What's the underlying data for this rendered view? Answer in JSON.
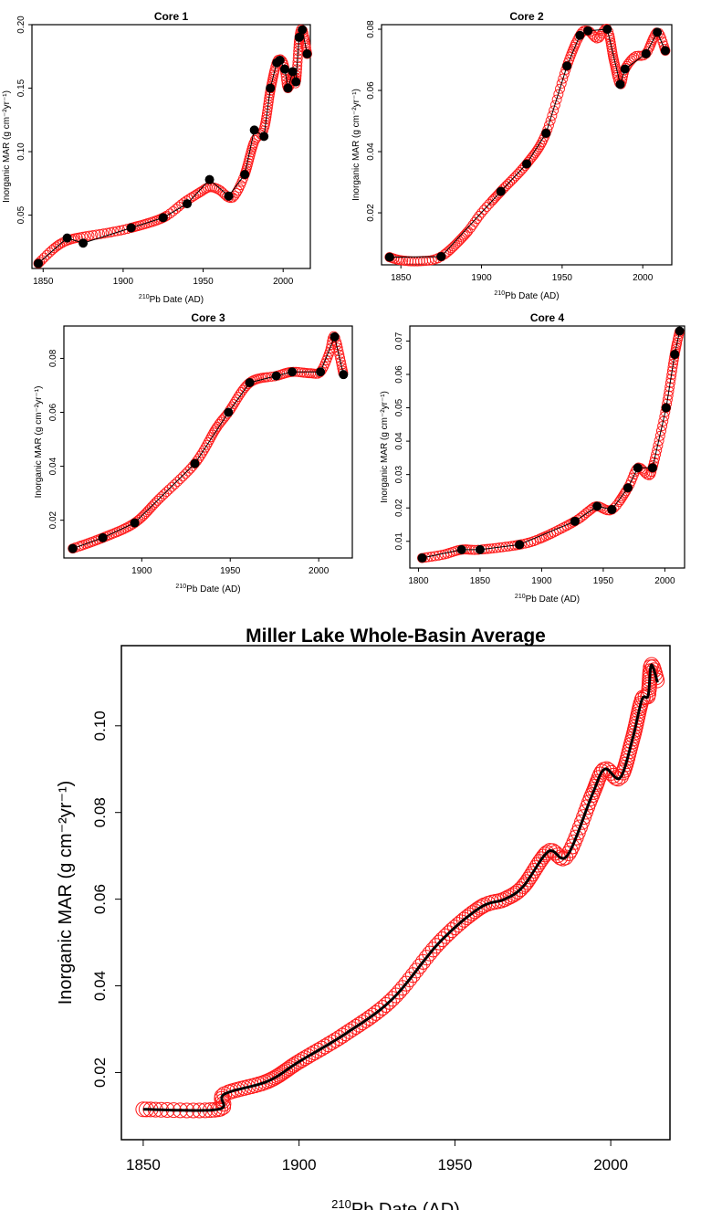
{
  "chart_data": [
    {
      "id": "core1",
      "type": "scatter",
      "title": "Core 1",
      "xlabel_sup": "210",
      "xlabel_main": "Pb Date (AD)",
      "ylabel": "Inorganic MAR (g cm⁻²yr⁻¹)",
      "xlim": [
        1843,
        2017
      ],
      "ylim": [
        0.008,
        0.2
      ],
      "xticks": [
        1850,
        1900,
        1950,
        2000
      ],
      "yticks": [
        0.05,
        0.1,
        0.15,
        0.2
      ],
      "ytick_labels": [
        "0.05",
        "0.10",
        "0.15",
        "0.20"
      ],
      "measured": [
        [
          1847,
          0.012
        ],
        [
          1865,
          0.032
        ],
        [
          1875,
          0.028
        ],
        [
          1905,
          0.04
        ],
        [
          1925,
          0.048
        ],
        [
          1940,
          0.059
        ],
        [
          1954,
          0.078
        ],
        [
          1966,
          0.065
        ],
        [
          1976,
          0.082
        ],
        [
          1982,
          0.117
        ],
        [
          1988,
          0.112
        ],
        [
          1992,
          0.15
        ],
        [
          1996,
          0.17
        ],
        [
          1998,
          0.172
        ],
        [
          2001,
          0.165
        ],
        [
          2003,
          0.15
        ],
        [
          2006,
          0.163
        ],
        [
          2008,
          0.155
        ],
        [
          2010,
          0.19
        ],
        [
          2012,
          0.196
        ],
        [
          2015,
          0.177
        ]
      ],
      "smooth": [
        [
          1847,
          0.012
        ],
        [
          1857,
          0.024
        ],
        [
          1865,
          0.03
        ],
        [
          1875,
          0.033
        ],
        [
          1890,
          0.036
        ],
        [
          1905,
          0.04
        ],
        [
          1925,
          0.048
        ],
        [
          1938,
          0.06
        ],
        [
          1948,
          0.068
        ],
        [
          1954,
          0.072
        ],
        [
          1960,
          0.07
        ],
        [
          1966,
          0.064
        ],
        [
          1970,
          0.066
        ],
        [
          1976,
          0.082
        ],
        [
          1982,
          0.108
        ],
        [
          1988,
          0.118
        ],
        [
          1992,
          0.148
        ],
        [
          1996,
          0.17
        ],
        [
          1999,
          0.172
        ],
        [
          2001,
          0.165
        ],
        [
          2003,
          0.15
        ],
        [
          2006,
          0.16
        ],
        [
          2008,
          0.155
        ],
        [
          2010,
          0.188
        ],
        [
          2012,
          0.196
        ],
        [
          2015,
          0.177
        ]
      ]
    },
    {
      "id": "core2",
      "type": "scatter",
      "title": "Core 2",
      "xlabel_sup": "210",
      "xlabel_main": "Pb Date (AD)",
      "ylabel": "Inorganic MAR (g cm⁻²yr⁻¹)",
      "xlim": [
        1838,
        2018
      ],
      "ylim": [
        0.003,
        0.0815
      ],
      "xticks": [
        1850,
        1900,
        1950,
        2000
      ],
      "yticks": [
        0.02,
        0.04,
        0.06,
        0.08
      ],
      "ytick_labels": [
        "0.02",
        "0.04",
        "0.06",
        "0.08"
      ],
      "measured": [
        [
          1843,
          0.0055
        ],
        [
          1875,
          0.0057
        ],
        [
          1912,
          0.027
        ],
        [
          1928,
          0.036
        ],
        [
          1940,
          0.046
        ],
        [
          1953,
          0.068
        ],
        [
          1961,
          0.078
        ],
        [
          1966,
          0.0795
        ],
        [
          1978,
          0.08
        ],
        [
          1986,
          0.062
        ],
        [
          1989,
          0.067
        ],
        [
          2002,
          0.072
        ],
        [
          2009,
          0.079
        ],
        [
          2014,
          0.073
        ]
      ],
      "smooth": [
        [
          1843,
          0.0055
        ],
        [
          1850,
          0.0045
        ],
        [
          1862,
          0.0042
        ],
        [
          1875,
          0.0057
        ],
        [
          1890,
          0.013
        ],
        [
          1900,
          0.02
        ],
        [
          1912,
          0.027
        ],
        [
          1928,
          0.036
        ],
        [
          1940,
          0.046
        ],
        [
          1953,
          0.068
        ],
        [
          1961,
          0.078
        ],
        [
          1966,
          0.0795
        ],
        [
          1972,
          0.077
        ],
        [
          1978,
          0.08
        ],
        [
          1982,
          0.07
        ],
        [
          1986,
          0.062
        ],
        [
          1989,
          0.067
        ],
        [
          1995,
          0.071
        ],
        [
          2002,
          0.072
        ],
        [
          2009,
          0.079
        ],
        [
          2014,
          0.073
        ]
      ]
    },
    {
      "id": "core3",
      "type": "scatter",
      "title": "Core 3",
      "xlabel_sup": "210",
      "xlabel_main": "Pb Date (AD)",
      "ylabel": "Inorganic MAR (g cm⁻²yr⁻¹)",
      "xlim": [
        1856,
        2019
      ],
      "ylim": [
        0.006,
        0.092
      ],
      "xticks": [
        1900,
        1950,
        2000
      ],
      "yticks": [
        0.02,
        0.04,
        0.06,
        0.08
      ],
      "ytick_labels": [
        "0.02",
        "0.04",
        "0.06",
        "0.08"
      ],
      "measured": [
        [
          1861,
          0.0095
        ],
        [
          1878,
          0.0135
        ],
        [
          1896,
          0.019
        ],
        [
          1930,
          0.041
        ],
        [
          1949,
          0.06
        ],
        [
          1961,
          0.071
        ],
        [
          1976,
          0.0735
        ],
        [
          1985,
          0.075
        ],
        [
          2001,
          0.075
        ],
        [
          2009,
          0.088
        ],
        [
          2014,
          0.074
        ]
      ],
      "smooth": [
        [
          1861,
          0.0095
        ],
        [
          1878,
          0.0135
        ],
        [
          1896,
          0.019
        ],
        [
          1910,
          0.028
        ],
        [
          1930,
          0.041
        ],
        [
          1942,
          0.054
        ],
        [
          1949,
          0.06
        ],
        [
          1961,
          0.071
        ],
        [
          1976,
          0.0735
        ],
        [
          1985,
          0.075
        ],
        [
          1995,
          0.0745
        ],
        [
          2001,
          0.075
        ],
        [
          2006,
          0.082
        ],
        [
          2009,
          0.088
        ],
        [
          2014,
          0.074
        ]
      ]
    },
    {
      "id": "core4",
      "type": "scatter",
      "title": "Core 4",
      "xlabel_sup": "210",
      "xlabel_main": "Pb Date (AD)",
      "ylabel": "Inorganic MAR (g cm⁻²yr⁻¹)",
      "xlim": [
        1793,
        2016
      ],
      "ylim": [
        0.002,
        0.0745
      ],
      "xticks": [
        1800,
        1850,
        1900,
        1950,
        2000
      ],
      "yticks": [
        0.01,
        0.02,
        0.03,
        0.04,
        0.05,
        0.06,
        0.07
      ],
      "ytick_labels": [
        "0.01",
        "0.02",
        "0.03",
        "0.04",
        "0.05",
        "0.06",
        "0.07"
      ],
      "measured": [
        [
          1803,
          0.005
        ],
        [
          1835,
          0.0075
        ],
        [
          1850,
          0.0075
        ],
        [
          1882,
          0.009
        ],
        [
          1927,
          0.016
        ],
        [
          1945,
          0.0205
        ],
        [
          1957,
          0.0195
        ],
        [
          1970,
          0.026
        ],
        [
          1978,
          0.032
        ],
        [
          1990,
          0.032
        ],
        [
          2001,
          0.05
        ],
        [
          2008,
          0.066
        ],
        [
          2012,
          0.073
        ]
      ],
      "smooth": [
        [
          1803,
          0.005
        ],
        [
          1820,
          0.006
        ],
        [
          1835,
          0.0075
        ],
        [
          1850,
          0.0075
        ],
        [
          1882,
          0.009
        ],
        [
          1900,
          0.011
        ],
        [
          1927,
          0.016
        ],
        [
          1938,
          0.019
        ],
        [
          1945,
          0.0205
        ],
        [
          1957,
          0.0195
        ],
        [
          1970,
          0.026
        ],
        [
          1978,
          0.032
        ],
        [
          1986,
          0.03
        ],
        [
          1990,
          0.032
        ],
        [
          2001,
          0.05
        ],
        [
          2008,
          0.066
        ],
        [
          2012,
          0.073
        ]
      ]
    },
    {
      "id": "average",
      "type": "line",
      "title": "Miller Lake Whole-Basin Average",
      "xlabel_sup": "210",
      "xlabel_main": "Pb Date (AD)",
      "ylabel": "Inorganic MAR (g cm⁻²yr⁻¹)",
      "xlim": [
        1843,
        2019
      ],
      "ylim": [
        0.0045,
        0.1185
      ],
      "xticks": [
        1850,
        1900,
        1950,
        2000
      ],
      "yticks": [
        0.02,
        0.04,
        0.06,
        0.08,
        0.1
      ],
      "ytick_labels": [
        "0.02",
        "0.04",
        "0.06",
        "0.08",
        "0.10"
      ],
      "smooth": [
        [
          1850,
          0.0115
        ],
        [
          1874,
          0.0115
        ],
        [
          1876,
          0.015
        ],
        [
          1890,
          0.018
        ],
        [
          1900,
          0.0225
        ],
        [
          1915,
          0.029
        ],
        [
          1930,
          0.037
        ],
        [
          1945,
          0.05
        ],
        [
          1958,
          0.058
        ],
        [
          1966,
          0.06
        ],
        [
          1972,
          0.063
        ],
        [
          1980,
          0.071
        ],
        [
          1986,
          0.07
        ],
        [
          1994,
          0.084
        ],
        [
          1998,
          0.09
        ],
        [
          2003,
          0.088
        ],
        [
          2007,
          0.097
        ],
        [
          2010,
          0.106
        ],
        [
          2012,
          0.107
        ],
        [
          2013,
          0.114
        ],
        [
          2015,
          0.11
        ]
      ]
    }
  ]
}
